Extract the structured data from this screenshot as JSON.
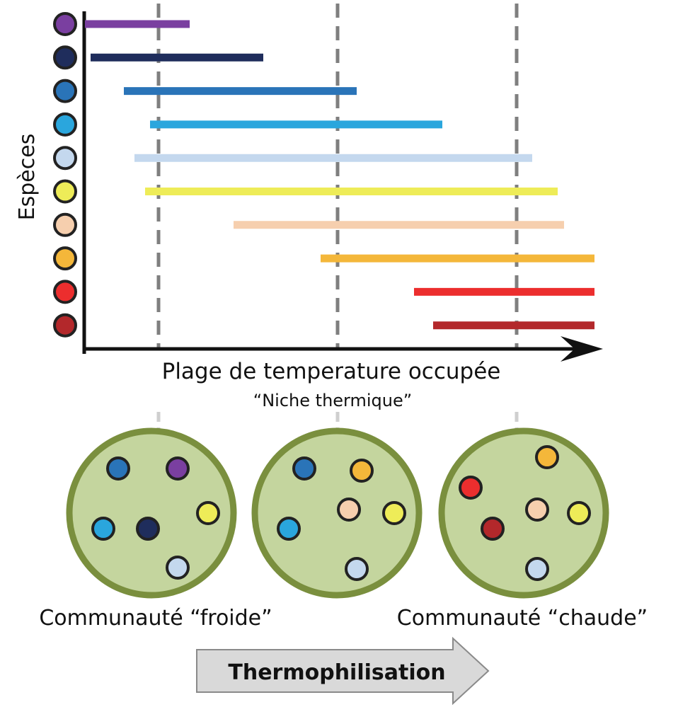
{
  "chart_data": {
    "type": "range-bar",
    "ylabel": "Espèces",
    "xlabel": "Plage de temperature occupée",
    "xsublabel": "“Niche thermique”",
    "species": [
      {
        "id": "s1",
        "color": "#7a3fa0",
        "range": [
          0,
          148
        ]
      },
      {
        "id": "s2",
        "color": "#1f2d5c",
        "range": [
          8,
          252
        ]
      },
      {
        "id": "s3",
        "color": "#2a74b8",
        "range": [
          55,
          384
        ]
      },
      {
        "id": "s4",
        "color": "#2aa6dd",
        "range": [
          92,
          505
        ]
      },
      {
        "id": "s5",
        "color": "#c4d8ee",
        "range": [
          70,
          632
        ]
      },
      {
        "id": "s6",
        "color": "#eeec58",
        "range": [
          85,
          668
        ]
      },
      {
        "id": "s7",
        "color": "#f6cfae",
        "range": [
          210,
          677
        ]
      },
      {
        "id": "s8",
        "color": "#f4b73a",
        "range": [
          333,
          720
        ]
      },
      {
        "id": "s9",
        "color": "#ec2e2e",
        "range": [
          465,
          720
        ]
      },
      {
        "id": "s10",
        "color": "#b3282b",
        "range": [
          492,
          720
        ]
      }
    ],
    "thresholds": [
      104,
      357,
      610
    ]
  },
  "communities": [
    {
      "id": "froide",
      "members": [
        "s3",
        "s1",
        "s6",
        "s4",
        "s2",
        "s5"
      ]
    },
    {
      "id": "middle",
      "members": [
        "s3",
        "s8",
        "s7",
        "s6",
        "s4",
        "s5"
      ]
    },
    {
      "id": "chaude",
      "members": [
        "s8",
        "s9",
        "s7",
        "s6",
        "s10",
        "s5"
      ]
    }
  ],
  "labels": {
    "community_cold": "Communauté “froide”",
    "community_warm": "Communauté “chaude”",
    "process": "Thermophilisation"
  },
  "colors": {
    "community_fill": "#c4d59e",
    "community_ring": "#7a8f3e",
    "process_arrow": "#d9d9d9"
  }
}
